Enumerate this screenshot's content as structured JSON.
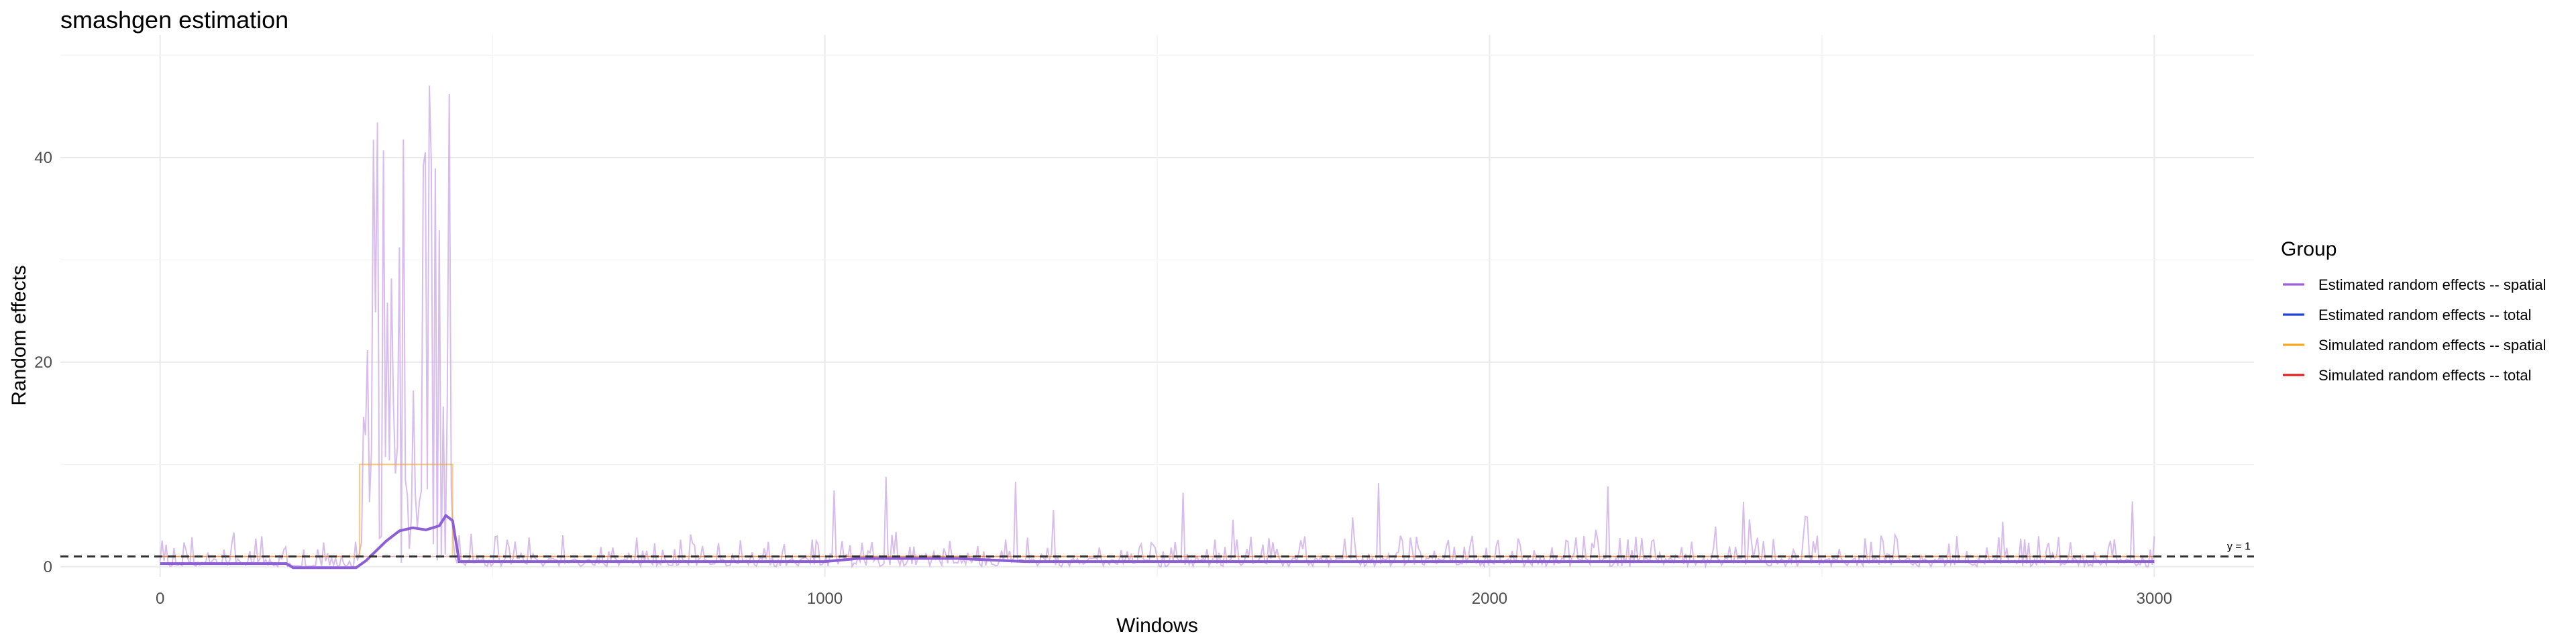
{
  "chart_data": {
    "type": "line",
    "title": "smashgen estimation",
    "xlabel": "Windows",
    "ylabel": "Random effects",
    "xlim": [
      -150,
      3150
    ],
    "ylim": [
      -1,
      52
    ],
    "x_ticks": [
      0,
      1000,
      2000,
      3000
    ],
    "y_ticks": [
      0,
      20,
      40
    ],
    "grid": true,
    "legend_title": "Group",
    "legend_position": "right",
    "reference_line": {
      "y": 1,
      "label": "y = 1",
      "style": "dashed"
    },
    "series": [
      {
        "name": "Estimated random effects -- spatial",
        "color": "#a05fd9",
        "segments": [
          {
            "x_range": [
              0,
              190
            ],
            "mean": 0.5,
            "peak_max": 3.5
          },
          {
            "x_range": [
              190,
              300
            ],
            "mean": 0.1,
            "peak_max": 0.5
          },
          {
            "x_range": [
              300,
              440
            ],
            "mean": 8,
            "peak_max": 51.5
          },
          {
            "x_range": [
              440,
              1000
            ],
            "mean": 0.6,
            "peak_max": 7.4
          },
          {
            "x_range": [
              1000,
              1200
            ],
            "mean": 0.9,
            "peak_max": 8.8
          },
          {
            "x_range": [
              1200,
              3000
            ],
            "mean": 0.6,
            "peak_max": 8.3
          }
        ]
      },
      {
        "name": "Estimated random effects -- total",
        "color": "#1f3fe0",
        "smooth": [
          [
            0,
            0.3
          ],
          [
            190,
            0.3
          ],
          [
            200,
            -0.1
          ],
          [
            295,
            -0.1
          ],
          [
            310,
            0.6
          ],
          [
            340,
            2.5
          ],
          [
            360,
            3.5
          ],
          [
            380,
            3.8
          ],
          [
            400,
            3.6
          ],
          [
            420,
            4.0
          ],
          [
            430,
            5.0
          ],
          [
            440,
            4.5
          ],
          [
            450,
            0.5
          ],
          [
            1000,
            0.5
          ],
          [
            1050,
            0.8
          ],
          [
            1200,
            0.8
          ],
          [
            1300,
            0.5
          ],
          [
            3000,
            0.5
          ]
        ]
      },
      {
        "name": "Simulated random effects -- spatial",
        "color": "#f5a623",
        "step": [
          [
            0,
            1
          ],
          [
            300,
            1
          ],
          [
            300,
            10
          ],
          [
            440,
            10
          ],
          [
            440,
            1
          ],
          [
            3000,
            1
          ]
        ]
      },
      {
        "name": "Simulated random effects -- total",
        "color": "#e02020",
        "step": [
          [
            0,
            1
          ],
          [
            3000,
            1
          ]
        ]
      }
    ]
  }
}
